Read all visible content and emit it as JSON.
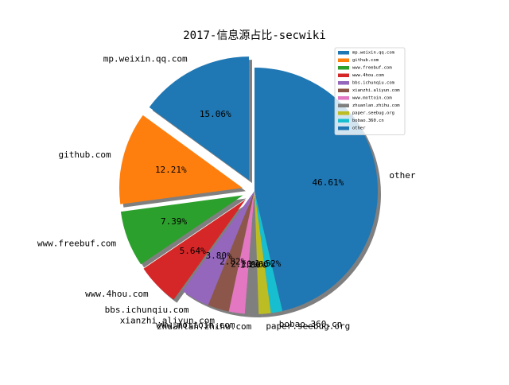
{
  "chart_data": {
    "type": "pie",
    "title": "2017-信息源占比-secwiki",
    "labels": [
      "mp.weixin.qq.com",
      "github.com",
      "www.freebuf.com",
      "www.4hou.com",
      "bbs.ichunqiu.com",
      "xianzhi.aliyun.com",
      "www.mottoin.com",
      "zhuanlan.zhihu.com",
      "paper.seebug.org",
      "bobao.360.cn",
      "other"
    ],
    "values": [
      15.06,
      12.21,
      7.39,
      5.64,
      3.8,
      2.82,
      2.1,
      1.8,
      1.6,
      1.52,
      46.61
    ],
    "pct_labels": [
      "15.06%",
      "12.21%",
      "7.39%",
      "5.64%",
      "3.80%",
      "2.82%",
      "2.10%",
      "1.80%",
      "1.60%",
      "1.52%",
      "46.61%"
    ],
    "colors": [
      "#1f77b4",
      "#ff7f0e",
      "#2ca02c",
      "#d62728",
      "#9467bd",
      "#8c564b",
      "#e377c2",
      "#7f7f7f",
      "#bcbd22",
      "#17becf",
      "#1f77b4"
    ],
    "exploded": [
      true,
      true,
      true,
      true,
      false,
      false,
      false,
      false,
      false,
      false,
      false
    ],
    "shadow": true,
    "start_angle_deg": 90,
    "legend_position": "top-right"
  }
}
